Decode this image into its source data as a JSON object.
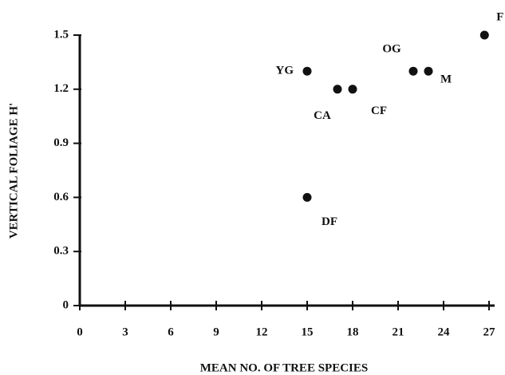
{
  "chart_data": {
    "type": "scatter",
    "x_label": "MEAN NO. OF TREE SPECIES",
    "y_label": "VERTICAL FOLIAGE H'",
    "x": [
      15,
      15,
      17,
      18,
      22,
      23,
      26.7
    ],
    "values": [
      1.3,
      0.6,
      1.2,
      1.2,
      1.3,
      1.3,
      1.5
    ],
    "point_labels": [
      "YG",
      "DF",
      "CA",
      "CF",
      "OG",
      "M",
      "F"
    ],
    "color": "#111111",
    "xlim": [
      0,
      27
    ],
    "xticks": [
      0,
      3,
      6,
      9,
      12,
      15,
      18,
      21,
      24,
      27
    ],
    "ylim": [
      0,
      1.5
    ],
    "yticks": [
      0,
      0.3,
      0.6,
      0.9,
      1.2,
      1.5
    ]
  }
}
